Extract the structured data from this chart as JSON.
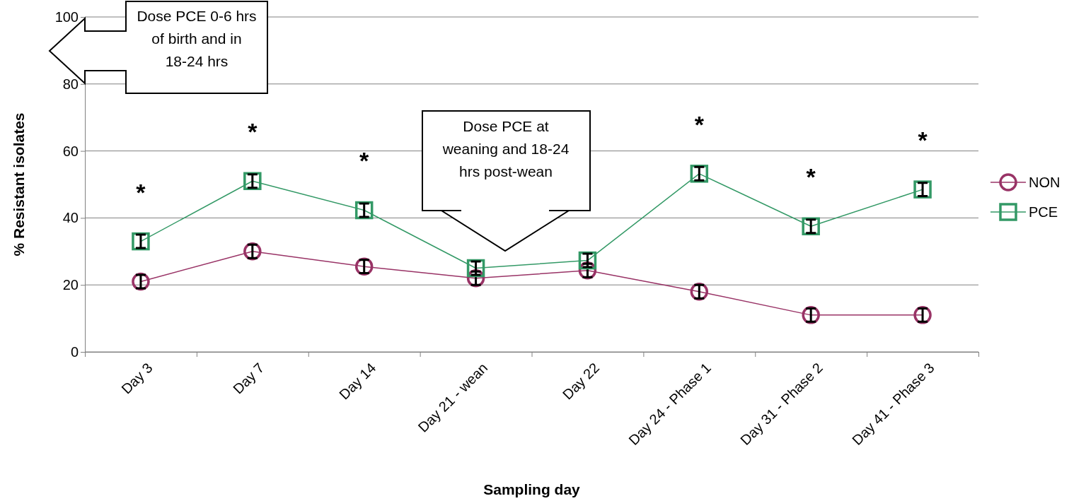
{
  "chart_data": {
    "type": "line",
    "xlabel": "Sampling day",
    "ylabel": "% Resistant isolates",
    "categories": [
      "Day 3",
      "Day 7",
      "Day 14",
      "Day 21 - wean",
      "Day 22",
      "Day 24 - Phase 1",
      "Day 31 - Phase 2",
      "Day 41 - Phase 3"
    ],
    "series": [
      {
        "name": "NON",
        "color": "#993366",
        "marker": "circle",
        "values": [
          21,
          30,
          25.5,
          22,
          24.3,
          18,
          11,
          11
        ],
        "errors": [
          2,
          2,
          2,
          2,
          2,
          2,
          2,
          2
        ]
      },
      {
        "name": "PCE",
        "color": "#339966",
        "marker": "square",
        "values": [
          33,
          51,
          42.3,
          25,
          27.3,
          53.2,
          37.5,
          48.5
        ],
        "errors": [
          2,
          2,
          2,
          2,
          2,
          2,
          2,
          2
        ]
      }
    ],
    "ylim": [
      0,
      100
    ],
    "yticks": [
      0,
      20,
      40,
      60,
      80,
      100
    ],
    "grid": "y",
    "legend": "right",
    "annotations": [
      "*",
      "*",
      "*",
      "*",
      "*",
      "*",
      "Dose PCE 0-6 hrs of birth and in 18-24 hrs",
      "Dose PCE at weaning and 18-24 hrs post-wean"
    ]
  }
}
